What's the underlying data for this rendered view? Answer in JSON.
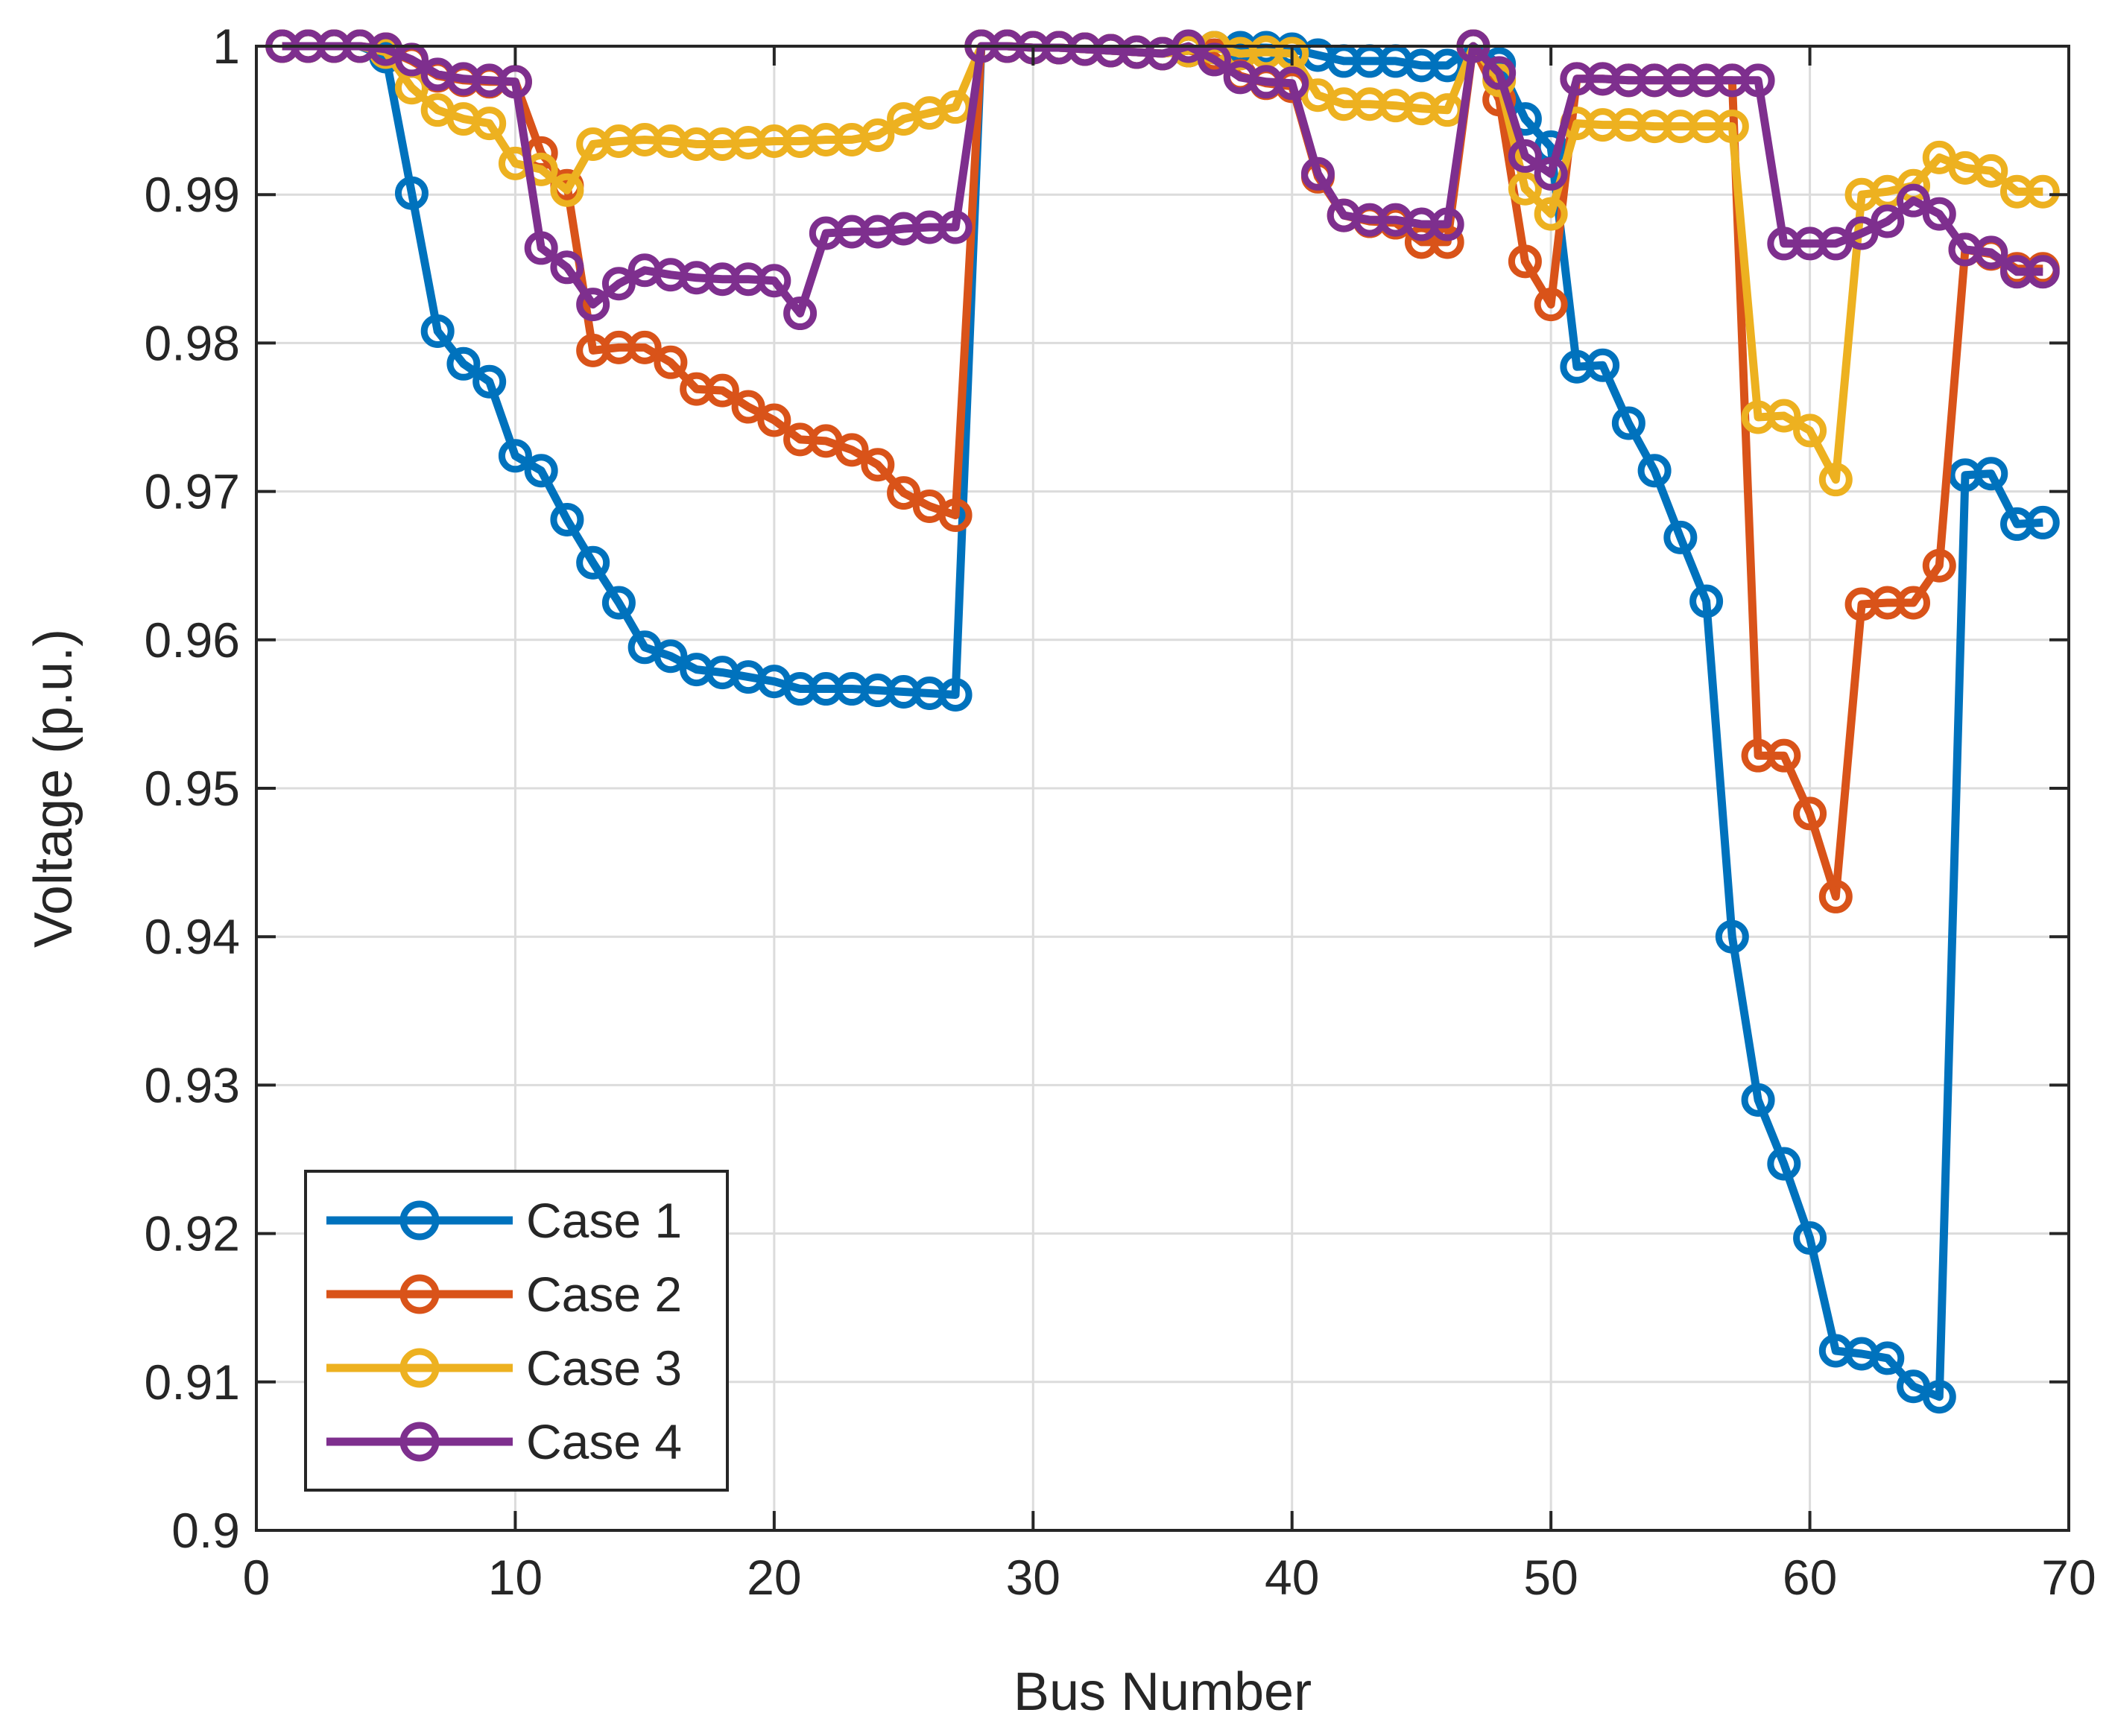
{
  "chart_data": {
    "type": "line",
    "title": "",
    "xlabel": "Bus Number",
    "ylabel": "Voltage (p.u.)",
    "xlim": [
      0,
      70
    ],
    "ylim": [
      0.9,
      1.0
    ],
    "xticks": [
      0,
      10,
      20,
      30,
      40,
      50,
      60,
      70
    ],
    "xtick_labels": [
      "0",
      "10",
      "20",
      "30",
      "40",
      "50",
      "60",
      "70"
    ],
    "yticks": [
      0.9,
      0.91,
      0.92,
      0.93,
      0.94,
      0.95,
      0.96,
      0.97,
      0.98,
      0.99,
      1.0
    ],
    "ytick_labels": [
      "0.9",
      "0.91",
      "0.92",
      "0.93",
      "0.94",
      "0.95",
      "0.96",
      "0.97",
      "0.98",
      "0.99",
      "1"
    ],
    "grid": true,
    "legend_position": "bottom-left",
    "marker": "circle",
    "x": [
      1,
      2,
      3,
      4,
      5,
      6,
      7,
      8,
      9,
      10,
      11,
      12,
      13,
      14,
      15,
      16,
      17,
      18,
      19,
      20,
      21,
      22,
      23,
      24,
      25,
      26,
      27,
      28,
      29,
      30,
      31,
      32,
      33,
      34,
      35,
      36,
      37,
      38,
      39,
      40,
      41,
      42,
      43,
      44,
      45,
      46,
      47,
      48,
      49,
      50,
      51,
      52,
      53,
      54,
      55,
      56,
      57,
      58,
      59,
      60,
      61,
      62,
      63,
      64,
      65,
      66,
      67,
      68,
      69
    ],
    "series": [
      {
        "name": "Case 1",
        "color": "#0072BD",
        "values": [
          1.0,
          1.0,
          1.0,
          1.0,
          0.9993,
          0.9901,
          0.9808,
          0.9786,
          0.9774,
          0.9724,
          0.9714,
          0.9681,
          0.9652,
          0.9625,
          0.9595,
          0.9589,
          0.958,
          0.9578,
          0.9575,
          0.9572,
          0.9567,
          0.9567,
          0.9567,
          0.9566,
          0.9565,
          0.9564,
          0.9563,
          1.0,
          1.0,
          0.9999,
          0.9999,
          0.9998,
          0.9997,
          0.9996,
          0.9995,
          0.9997,
          0.9999,
          0.9999,
          0.9999,
          0.9998,
          0.9994,
          0.999,
          0.999,
          0.999,
          0.9987,
          0.9987,
          1.0,
          0.9988,
          0.9951,
          0.9932,
          0.9784,
          0.9785,
          0.9746,
          0.9714,
          0.9669,
          0.9626,
          0.94,
          0.929,
          0.9247,
          0.9197,
          0.9121,
          0.9119,
          0.9116,
          0.9097,
          0.909,
          0.9711,
          0.9712,
          0.9678,
          0.9679
        ]
      },
      {
        "name": "Case 2",
        "color": "#D95319",
        "values": [
          1.0,
          1.0,
          1.0,
          1.0,
          0.9998,
          0.999,
          0.998,
          0.9977,
          0.9976,
          0.9976,
          0.9928,
          0.9906,
          0.9795,
          0.9797,
          0.9797,
          0.9787,
          0.9769,
          0.9768,
          0.9757,
          0.9748,
          0.9735,
          0.9734,
          0.9728,
          0.9718,
          0.9699,
          0.969,
          0.9684,
          1.0,
          1.0,
          0.9999,
          0.9999,
          0.9998,
          0.9997,
          0.9996,
          0.9995,
          0.9997,
          0.9994,
          0.998,
          0.9975,
          0.9973,
          0.9912,
          0.9886,
          0.9882,
          0.9881,
          0.9868,
          0.9868,
          1.0,
          0.9964,
          0.9855,
          0.9826,
          0.9978,
          0.9978,
          0.9977,
          0.9977,
          0.9977,
          0.9977,
          0.9977,
          0.9522,
          0.9522,
          0.9483,
          0.9427,
          0.9624,
          0.9625,
          0.9625,
          0.965,
          0.9863,
          0.986,
          0.985,
          0.985
        ]
      },
      {
        "name": "Case 3",
        "color": "#EDB120",
        "values": [
          1.0,
          1.0,
          1.0,
          1.0,
          0.9996,
          0.9972,
          0.9957,
          0.9951,
          0.9948,
          0.9921,
          0.9917,
          0.9903,
          0.9934,
          0.9936,
          0.9937,
          0.9936,
          0.9934,
          0.9934,
          0.9935,
          0.9936,
          0.9936,
          0.9937,
          0.9937,
          0.994,
          0.9951,
          0.9955,
          0.9959,
          1.0,
          1.0,
          0.9999,
          0.9999,
          0.9998,
          0.9997,
          0.9996,
          0.9995,
          0.9997,
          0.9999,
          0.9995,
          0.9996,
          0.9995,
          0.9967,
          0.9961,
          0.9961,
          0.996,
          0.9958,
          0.9957,
          1.0,
          0.9977,
          0.9904,
          0.9887,
          0.9948,
          0.9947,
          0.9947,
          0.9946,
          0.9946,
          0.9946,
          0.9946,
          0.975,
          0.9751,
          0.9741,
          0.9708,
          0.99,
          0.9902,
          0.9906,
          0.9925,
          0.9918,
          0.9916,
          0.9902,
          0.9902
        ]
      },
      {
        "name": "Case 4",
        "color": "#7E2F8E",
        "values": [
          1.0,
          1.0,
          1.0,
          1.0,
          0.9998,
          0.9991,
          0.9981,
          0.9978,
          0.9977,
          0.9976,
          0.9864,
          0.9851,
          0.9826,
          0.984,
          0.9849,
          0.9846,
          0.9844,
          0.9843,
          0.9843,
          0.9842,
          0.982,
          0.9874,
          0.9875,
          0.9875,
          0.9877,
          0.9878,
          0.9878,
          1.0,
          1.0,
          0.9999,
          0.9999,
          0.9998,
          0.9997,
          0.9996,
          0.9995,
          1.0,
          0.9991,
          0.9979,
          0.9976,
          0.9975,
          0.9914,
          0.9886,
          0.9883,
          0.9883,
          0.988,
          0.988,
          1.0,
          0.9982,
          0.9926,
          0.9914,
          0.9978,
          0.9978,
          0.9977,
          0.9977,
          0.9977,
          0.9977,
          0.9977,
          0.9977,
          0.9867,
          0.9867,
          0.9867,
          0.9874,
          0.9882,
          0.9896,
          0.9887,
          0.9863,
          0.9861,
          0.9848,
          0.9848
        ]
      }
    ]
  }
}
